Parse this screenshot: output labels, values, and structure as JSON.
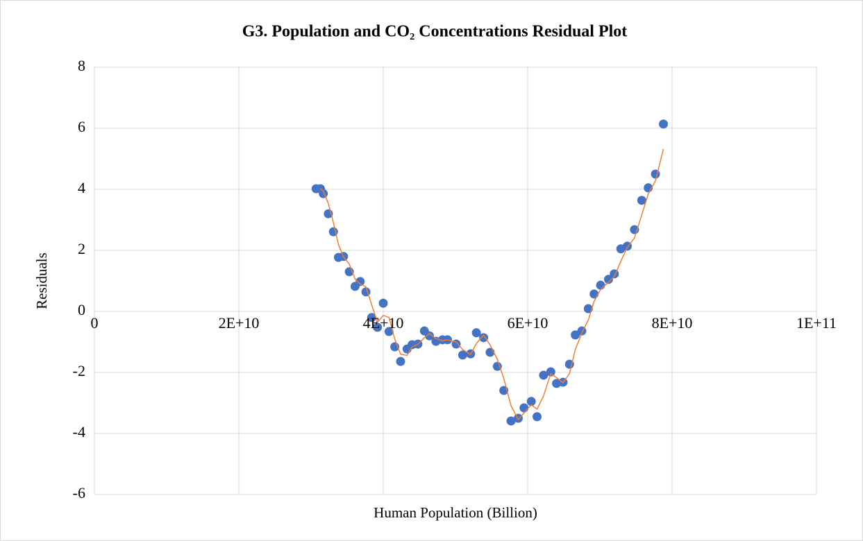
{
  "chart_data": {
    "type": "scatter",
    "title": "G3. Population and CO₂ Concentrations Residual Plot",
    "x_label": "Human Population (Billion)",
    "y_label": "Residuals",
    "xlim": [
      0,
      100000000000.0
    ],
    "xticks": [
      0,
      {
        "value": 20000000000.0,
        "label": "2E+10"
      },
      {
        "value": 40000000000.0,
        "label": "4E+10"
      },
      {
        "value": 60000000000.0,
        "label": "6E+10"
      },
      {
        "value": 80000000000.0,
        "label": "8E+10"
      },
      {
        "value": 100000000000.0,
        "label": "1E+11"
      }
    ],
    "ylim": [
      -6,
      8
    ],
    "yticks": [
      -6,
      -4,
      -2,
      0,
      2,
      4,
      6,
      8
    ],
    "grid": true,
    "series": [
      {
        "type": "scatter",
        "color": "#4472c4",
        "x": [
          30700000000.0,
          31300000000.0,
          31700000000.0,
          32400000000.0,
          33100000000.0,
          33800000000.0,
          34500000000.0,
          35300000000.0,
          36100000000.0,
          36800000000.0,
          37600000000.0,
          38400000000.0,
          39200000000.0,
          40000000000.0,
          40800000000.0,
          41600000000.0,
          42400000000.0,
          43300000000.0,
          44000000000.0,
          44800000000.0,
          45700000000.0,
          46400000000.0,
          47300000000.0,
          48200000000.0,
          48900000000.0,
          50100000000.0,
          51000000000.0,
          52100000000.0,
          52900000000.0,
          53900000000.0,
          54800000000.0,
          55800000000.0,
          56700000000.0,
          57700000000.0,
          58700000000.0,
          59500000000.0,
          60500000000.0,
          61300000000.0,
          62200000000.0,
          63200000000.0,
          64000000000.0,
          64900000000.0,
          65800000000.0,
          66600000000.0,
          67500000000.0,
          68400000000.0,
          69200000000.0,
          70100000000.0,
          71200000000.0,
          72000000000.0,
          72900000000.0,
          73800000000.0,
          74800000000.0,
          75800000000.0,
          76700000000.0,
          77700000000.0,
          78800000000.0
        ],
        "values": [
          4.02,
          4.02,
          3.86,
          3.2,
          2.61,
          1.77,
          1.8,
          1.3,
          0.82,
          0.98,
          0.64,
          -0.2,
          -0.52,
          0.27,
          -0.66,
          -1.16,
          -1.64,
          -1.23,
          -1.09,
          -1.07,
          -0.64,
          -0.8,
          -0.98,
          -0.93,
          -0.93,
          -1.07,
          -1.43,
          -1.39,
          -0.7,
          -0.86,
          -1.34,
          -1.8,
          -2.59,
          -3.59,
          -3.5,
          -3.16,
          -2.95,
          -3.45,
          -2.09,
          -1.98,
          -2.36,
          -2.32,
          -1.73,
          -0.77,
          -0.64,
          0.09,
          0.57,
          0.86,
          1.05,
          1.23,
          2.05,
          2.14,
          2.68,
          3.64,
          4.05,
          4.5,
          6.14
        ]
      },
      {
        "type": "line",
        "color": "#ed7d31",
        "x": [
          31300000000.0,
          31700000000.0,
          32400000000.0,
          33100000000.0,
          33800000000.0,
          34500000000.0,
          35300000000.0,
          36100000000.0,
          36800000000.0,
          37600000000.0,
          38400000000.0,
          39200000000.0,
          40000000000.0,
          40800000000.0,
          41600000000.0,
          42400000000.0,
          43300000000.0,
          44000000000.0,
          44800000000.0,
          45700000000.0,
          46400000000.0,
          47300000000.0,
          48200000000.0,
          48900000000.0,
          50100000000.0,
          51000000000.0,
          52100000000.0,
          52900000000.0,
          53900000000.0,
          54800000000.0,
          55800000000.0,
          56700000000.0,
          57700000000.0,
          58700000000.0,
          59500000000.0,
          60500000000.0,
          61300000000.0,
          62200000000.0,
          63200000000.0,
          64000000000.0,
          64900000000.0,
          65800000000.0,
          66600000000.0,
          67500000000.0,
          68400000000.0,
          69200000000.0,
          70100000000.0,
          71200000000.0,
          72000000000.0,
          72900000000.0,
          73800000000.0,
          74800000000.0,
          75800000000.0,
          76700000000.0,
          77700000000.0,
          78800000000.0
        ],
        "values": [
          4.02,
          3.94,
          3.53,
          2.91,
          2.19,
          1.79,
          1.55,
          1.06,
          0.9,
          0.81,
          0.22,
          -0.36,
          -0.13,
          -0.2,
          -0.91,
          -1.4,
          -1.44,
          -1.16,
          -1.08,
          -0.86,
          -0.72,
          -0.89,
          -0.96,
          -0.93,
          -1.0,
          -1.25,
          -1.41,
          -1.05,
          -0.78,
          -1.1,
          -1.57,
          -2.2,
          -3.09,
          -3.55,
          -3.33,
          -3.06,
          -3.2,
          -2.77,
          -2.04,
          -2.17,
          -2.34,
          -2.03,
          -1.25,
          -0.71,
          -0.28,
          0.33,
          0.72,
          0.96,
          1.14,
          1.64,
          2.1,
          2.41,
          3.16,
          3.85,
          4.28,
          5.32
        ]
      }
    ]
  }
}
